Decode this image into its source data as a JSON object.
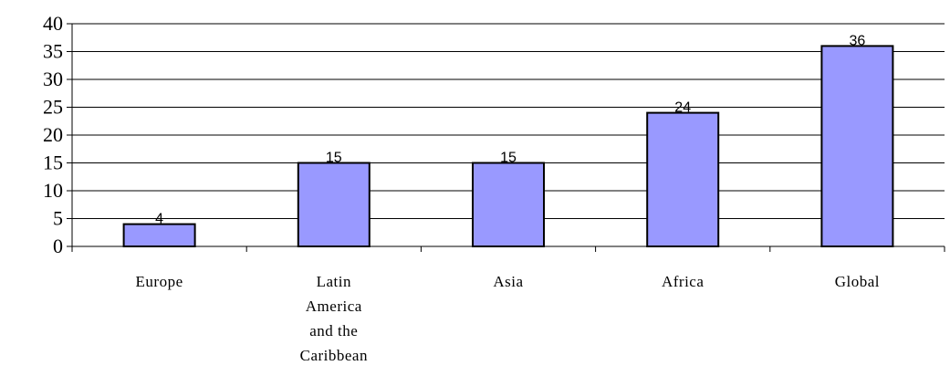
{
  "chart_data": {
    "type": "bar",
    "title": "",
    "xlabel": "",
    "ylabel": "",
    "categories": [
      [
        "Europe"
      ],
      [
        "Latin",
        "America",
        "and the",
        "Caribbean"
      ],
      [
        "Asia"
      ],
      [
        "Africa"
      ],
      [
        "Global"
      ]
    ],
    "values": [
      4,
      15,
      15,
      24,
      36
    ],
    "data_labels": [
      "4",
      "15",
      "15",
      "24",
      "36"
    ],
    "ylim": [
      0,
      40
    ],
    "yticks": [
      0,
      5,
      10,
      15,
      20,
      25,
      30,
      35,
      40
    ],
    "ytick_labels": [
      "0",
      "5",
      "10",
      "15",
      "20",
      "25",
      "30",
      "35",
      "40"
    ],
    "grid": true,
    "legend": "none",
    "colors": {
      "bar": "#9999ff",
      "bar_edge": "#000000",
      "grid": "#000000"
    }
  }
}
